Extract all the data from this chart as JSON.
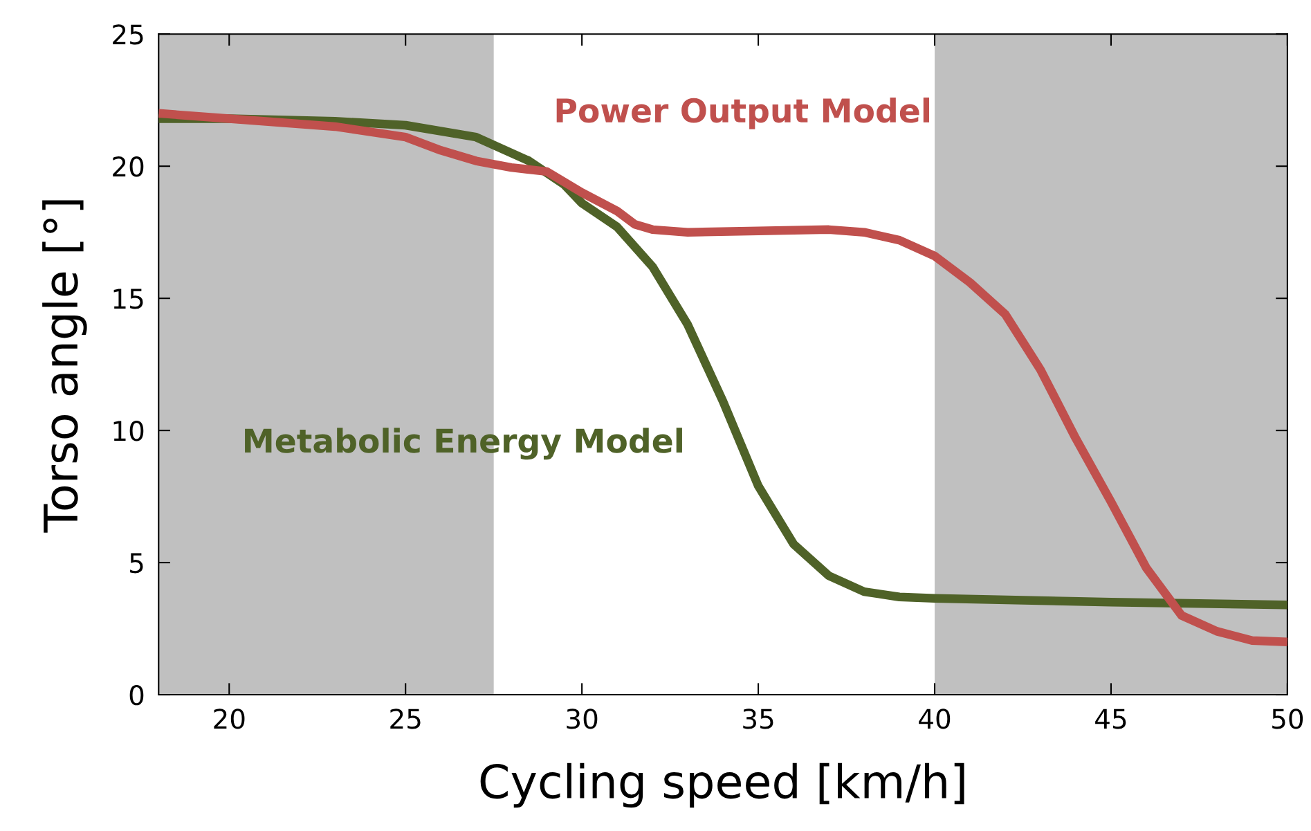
{
  "chart_data": {
    "type": "line",
    "xlabel": "Cycling speed [km/h]",
    "ylabel": "Torso angle [°]",
    "xlim": [
      18,
      50
    ],
    "ylim": [
      0,
      25
    ],
    "xticks": [
      20,
      25,
      30,
      35,
      40,
      45,
      50
    ],
    "yticks": [
      0,
      5,
      10,
      15,
      20,
      25
    ],
    "grid": false,
    "legend": false,
    "marker": "none",
    "line_style": "solid",
    "bands": [
      {
        "axis": "x",
        "from": 18,
        "to": 27.5,
        "color": "#c0c0c0"
      },
      {
        "axis": "x",
        "from": 40,
        "to": 50,
        "color": "#c0c0c0"
      }
    ],
    "series": [
      {
        "name": "Metabolic Energy Model",
        "color": "#4f6228",
        "x": [
          18,
          20,
          23,
          25,
          27,
          28.5,
          29.5,
          30,
          31,
          32,
          33,
          34,
          35,
          36,
          37,
          38,
          39,
          40,
          45,
          50
        ],
        "values": [
          21.8,
          21.8,
          21.7,
          21.55,
          21.1,
          20.2,
          19.3,
          18.6,
          17.7,
          16.2,
          14.0,
          11.1,
          7.9,
          5.7,
          4.5,
          3.9,
          3.7,
          3.65,
          3.5,
          3.4
        ]
      },
      {
        "name": "Power Output Model",
        "color": "#c0504d",
        "x": [
          18,
          20,
          23,
          25,
          26,
          27,
          28,
          29,
          30,
          31,
          31.5,
          32,
          33,
          35,
          37,
          38,
          39,
          40,
          41,
          42,
          43,
          44,
          45,
          46,
          47,
          48,
          49,
          50
        ],
        "values": [
          22.0,
          21.8,
          21.5,
          21.1,
          20.6,
          20.2,
          19.95,
          19.8,
          19.0,
          18.3,
          17.8,
          17.6,
          17.5,
          17.55,
          17.6,
          17.5,
          17.2,
          16.6,
          15.6,
          14.4,
          12.3,
          9.7,
          7.3,
          4.8,
          3.0,
          2.4,
          2.05,
          2.0
        ]
      }
    ]
  }
}
